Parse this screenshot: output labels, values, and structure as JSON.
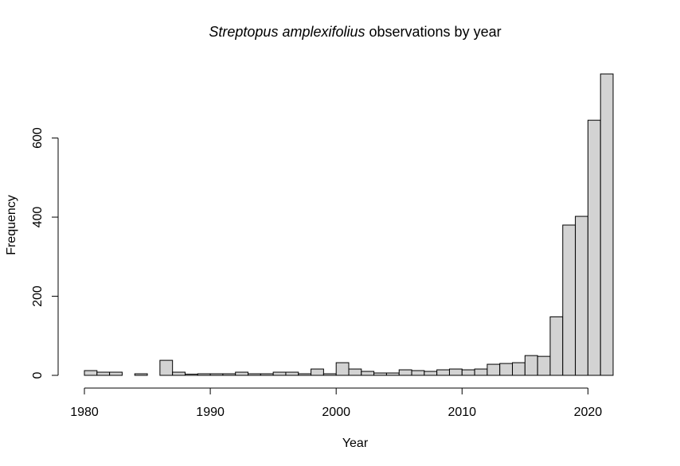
{
  "chart_data": {
    "type": "bar",
    "title": {
      "species": "Streptopus amplexifolius",
      "suffix": " observations by year"
    },
    "xlabel": "Year",
    "ylabel": "Frequency",
    "bin_width": 1,
    "bins_start": [
      1980,
      1981,
      1982,
      1983,
      1984,
      1985,
      1986,
      1987,
      1988,
      1989,
      1990,
      1991,
      1992,
      1993,
      1994,
      1995,
      1996,
      1997,
      1998,
      1999,
      2000,
      2001,
      2002,
      2003,
      2004,
      2005,
      2006,
      2007,
      2008,
      2009,
      2010,
      2011,
      2012,
      2013,
      2014,
      2015,
      2016,
      2017,
      2018,
      2019,
      2020,
      2021
    ],
    "values": [
      12,
      8,
      8,
      0,
      4,
      0,
      38,
      8,
      3,
      4,
      4,
      4,
      8,
      4,
      4,
      8,
      8,
      4,
      16,
      4,
      32,
      16,
      10,
      6,
      6,
      14,
      12,
      10,
      14,
      16,
      14,
      16,
      28,
      30,
      32,
      50,
      48,
      148,
      380,
      402,
      645,
      762
    ],
    "xlim": [
      1980,
      2022
    ],
    "ylim": [
      0,
      762
    ],
    "x_ticks": [
      1980,
      1990,
      2000,
      2010,
      2020
    ],
    "y_ticks": [
      0,
      200,
      400,
      600
    ],
    "grid": false,
    "legend": "none"
  }
}
